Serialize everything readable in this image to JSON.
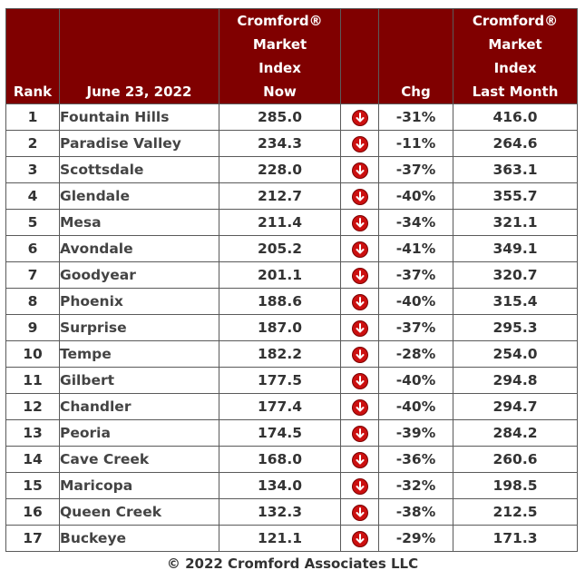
{
  "header": {
    "rank": "Rank",
    "date": "June 23, 2022",
    "now": [
      "Cromford®",
      "Market",
      "Index",
      "Now"
    ],
    "chg": "Chg",
    "last": [
      "Cromford®",
      "Market",
      "Index",
      "Last Month"
    ]
  },
  "arrow_icon": "down-arrow-icon",
  "arrow_color": "#cc1010",
  "header_color": "#800000",
  "rows": [
    {
      "rank": "1",
      "city": "Fountain Hills",
      "now": "285.0",
      "chg": "-31%",
      "last": "416.0"
    },
    {
      "rank": "2",
      "city": "Paradise Valley",
      "now": "234.3",
      "chg": "-11%",
      "last": "264.6"
    },
    {
      "rank": "3",
      "city": "Scottsdale",
      "now": "228.0",
      "chg": "-37%",
      "last": "363.1"
    },
    {
      "rank": "4",
      "city": "Glendale",
      "now": "212.7",
      "chg": "-40%",
      "last": "355.7"
    },
    {
      "rank": "5",
      "city": "Mesa",
      "now": "211.4",
      "chg": "-34%",
      "last": "321.1"
    },
    {
      "rank": "6",
      "city": "Avondale",
      "now": "205.2",
      "chg": "-41%",
      "last": "349.1"
    },
    {
      "rank": "7",
      "city": "Goodyear",
      "now": "201.1",
      "chg": "-37%",
      "last": "320.7"
    },
    {
      "rank": "8",
      "city": "Phoenix",
      "now": "188.6",
      "chg": "-40%",
      "last": "315.4"
    },
    {
      "rank": "9",
      "city": "Surprise",
      "now": "187.0",
      "chg": "-37%",
      "last": "295.3"
    },
    {
      "rank": "10",
      "city": "Tempe",
      "now": "182.2",
      "chg": "-28%",
      "last": "254.0"
    },
    {
      "rank": "11",
      "city": "Gilbert",
      "now": "177.5",
      "chg": "-40%",
      "last": "294.8"
    },
    {
      "rank": "12",
      "city": "Chandler",
      "now": "177.4",
      "chg": "-40%",
      "last": "294.7"
    },
    {
      "rank": "13",
      "city": "Peoria",
      "now": "174.5",
      "chg": "-39%",
      "last": "284.2"
    },
    {
      "rank": "14",
      "city": "Cave Creek",
      "now": "168.0",
      "chg": "-36%",
      "last": "260.6"
    },
    {
      "rank": "15",
      "city": "Maricopa",
      "now": "134.0",
      "chg": "-32%",
      "last": "198.5"
    },
    {
      "rank": "16",
      "city": "Queen Creek",
      "now": "132.3",
      "chg": "-38%",
      "last": "212.5"
    },
    {
      "rank": "17",
      "city": "Buckeye",
      "now": "121.1",
      "chg": "-29%",
      "last": "171.3"
    }
  ],
  "footer": "© 2022 Cromford Associates LLC"
}
